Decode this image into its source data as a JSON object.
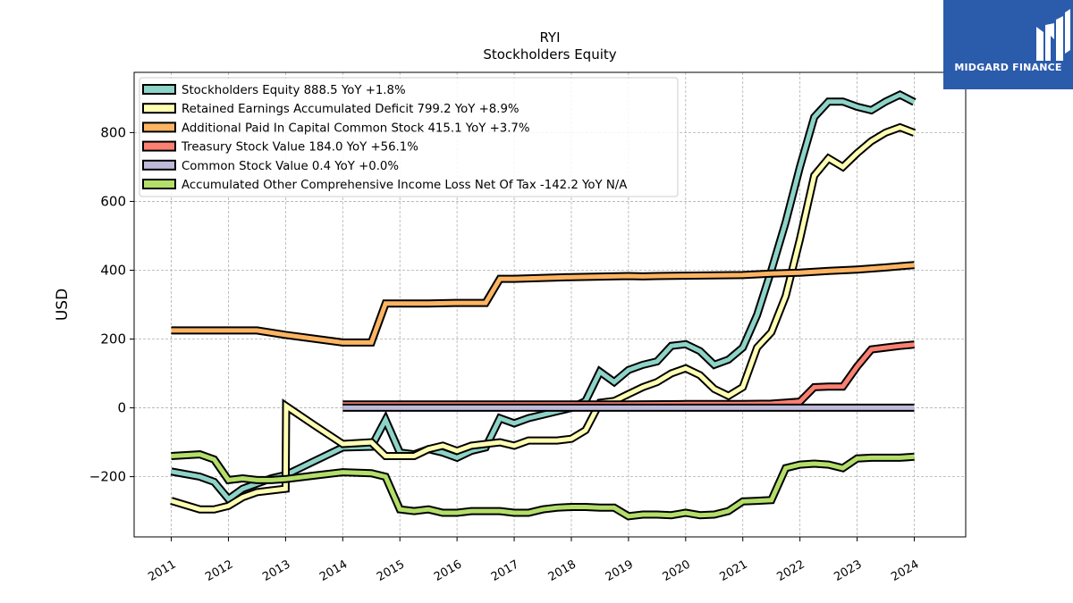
{
  "brand": {
    "name": "MIDGARD FINANCE",
    "bg": "#2b5bab"
  },
  "chart_data": {
    "type": "line",
    "title": "RYI",
    "subtitle": "Stockholders  Equity",
    "ylabel": "USD",
    "xlabel": "",
    "ylim": [
      -375,
      975
    ],
    "xlim": [
      2010.35,
      2024.9
    ],
    "yticks": [
      -200,
      0,
      200,
      400,
      600,
      800
    ],
    "ytick_labels": [
      "−200",
      "0",
      "200",
      "400",
      "600",
      "800"
    ],
    "xticks": [
      2011,
      2012,
      2013,
      2014,
      2015,
      2016,
      2017,
      2018,
      2019,
      2020,
      2021,
      2022,
      2023,
      2024
    ],
    "xtick_labels": [
      "2011",
      "2012",
      "2013",
      "2014",
      "2015",
      "2016",
      "2017",
      "2018",
      "2019",
      "2020",
      "2021",
      "2022",
      "2023",
      "2024"
    ],
    "grid": true,
    "legend_position": "top-left",
    "series": [
      {
        "name": "Stockholders Equity  888.5 YoY +1.8%",
        "color": "#8dd3c7",
        "points": [
          [
            2011.0,
            -185
          ],
          [
            2011.5,
            -200
          ],
          [
            2011.75,
            -215
          ],
          [
            2012.0,
            -265
          ],
          [
            2012.25,
            -235
          ],
          [
            2012.5,
            -220
          ],
          [
            2012.75,
            -205
          ],
          [
            2013.0,
            -195
          ],
          [
            2013.25,
            -175
          ],
          [
            2013.5,
            -155
          ],
          [
            2013.75,
            -135
          ],
          [
            2014.0,
            -115
          ],
          [
            2014.5,
            -113
          ],
          [
            2014.75,
            -35
          ],
          [
            2015.0,
            -130
          ],
          [
            2015.25,
            -135
          ],
          [
            2015.5,
            -120
          ],
          [
            2015.75,
            -130
          ],
          [
            2016.0,
            -145
          ],
          [
            2016.25,
            -125
          ],
          [
            2016.5,
            -115
          ],
          [
            2016.75,
            -30
          ],
          [
            2017.0,
            -45
          ],
          [
            2017.25,
            -30
          ],
          [
            2017.5,
            -20
          ],
          [
            2017.75,
            -10
          ],
          [
            2018.0,
            0
          ],
          [
            2018.25,
            20
          ],
          [
            2018.5,
            105
          ],
          [
            2018.75,
            75
          ],
          [
            2019.0,
            110
          ],
          [
            2019.25,
            125
          ],
          [
            2019.5,
            135
          ],
          [
            2019.75,
            180
          ],
          [
            2020.0,
            185
          ],
          [
            2020.25,
            165
          ],
          [
            2020.5,
            125
          ],
          [
            2020.75,
            140
          ],
          [
            2021.0,
            175
          ],
          [
            2021.25,
            270
          ],
          [
            2021.5,
            400
          ],
          [
            2021.75,
            540
          ],
          [
            2022.0,
            700
          ],
          [
            2022.25,
            845
          ],
          [
            2022.5,
            890
          ],
          [
            2022.75,
            890
          ],
          [
            2023.0,
            875
          ],
          [
            2023.25,
            865
          ],
          [
            2023.5,
            890
          ],
          [
            2023.75,
            910
          ],
          [
            2024.0,
            888.5
          ]
        ]
      },
      {
        "name": "Retained Earnings Accumulated Deficit  799.2 YoY +8.9%",
        "color": "#ffffb3",
        "points": [
          [
            2011.0,
            -270
          ],
          [
            2011.5,
            -295
          ],
          [
            2011.75,
            -295
          ],
          [
            2012.0,
            -285
          ],
          [
            2012.25,
            -260
          ],
          [
            2012.5,
            -245
          ],
          [
            2012.75,
            -240
          ],
          [
            2013.0,
            -235
          ],
          [
            2013.01,
            5
          ],
          [
            2013.5,
            -50
          ],
          [
            2014.0,
            -105
          ],
          [
            2014.5,
            -100
          ],
          [
            2014.75,
            -140
          ],
          [
            2015.0,
            -140
          ],
          [
            2015.25,
            -140
          ],
          [
            2015.5,
            -120
          ],
          [
            2015.75,
            -110
          ],
          [
            2016.0,
            -125
          ],
          [
            2016.25,
            -110
          ],
          [
            2016.5,
            -105
          ],
          [
            2016.75,
            -100
          ],
          [
            2017.0,
            -110
          ],
          [
            2017.25,
            -95
          ],
          [
            2017.5,
            -95
          ],
          [
            2017.75,
            -95
          ],
          [
            2018.0,
            -90
          ],
          [
            2018.25,
            -65
          ],
          [
            2018.5,
            15
          ],
          [
            2018.75,
            20
          ],
          [
            2019.0,
            40
          ],
          [
            2019.25,
            60
          ],
          [
            2019.5,
            75
          ],
          [
            2019.75,
            100
          ],
          [
            2020.0,
            115
          ],
          [
            2020.25,
            95
          ],
          [
            2020.5,
            55
          ],
          [
            2020.75,
            35
          ],
          [
            2021.0,
            60
          ],
          [
            2021.25,
            175
          ],
          [
            2021.5,
            220
          ],
          [
            2021.75,
            325
          ],
          [
            2022.0,
            490
          ],
          [
            2022.25,
            675
          ],
          [
            2022.5,
            725
          ],
          [
            2022.75,
            700
          ],
          [
            2023.0,
            740
          ],
          [
            2023.25,
            775
          ],
          [
            2023.5,
            800
          ],
          [
            2023.75,
            815
          ],
          [
            2024.0,
            799.2
          ]
        ]
      },
      {
        "name": "Additional Paid In Capital Common Stock  415.1 YoY +3.7%",
        "color": "#fdb462",
        "points": [
          [
            2011.0,
            225
          ],
          [
            2012.0,
            225
          ],
          [
            2012.5,
            225
          ],
          [
            2013.0,
            212
          ],
          [
            2014.0,
            190
          ],
          [
            2014.5,
            190
          ],
          [
            2014.75,
            303
          ],
          [
            2015.0,
            303
          ],
          [
            2015.5,
            303
          ],
          [
            2016.0,
            305
          ],
          [
            2016.5,
            305
          ],
          [
            2016.75,
            375
          ],
          [
            2017.0,
            375
          ],
          [
            2018.0,
            380
          ],
          [
            2019.0,
            383
          ],
          [
            2019.25,
            382
          ],
          [
            2019.5,
            383
          ],
          [
            2020.0,
            384
          ],
          [
            2021.0,
            386
          ],
          [
            2021.5,
            390
          ],
          [
            2022.0,
            393
          ],
          [
            2022.5,
            398
          ],
          [
            2023.0,
            402
          ],
          [
            2023.5,
            408
          ],
          [
            2024.0,
            415.1
          ]
        ]
      },
      {
        "name": "Treasury Stock Value  184.0 YoY +56.1%",
        "color": "#fb8072",
        "points": [
          [
            2014.0,
            10
          ],
          [
            2015.0,
            10
          ],
          [
            2016.0,
            10
          ],
          [
            2017.0,
            10
          ],
          [
            2018.0,
            10
          ],
          [
            2019.0,
            10
          ],
          [
            2020.0,
            11
          ],
          [
            2021.0,
            11
          ],
          [
            2021.5,
            12
          ],
          [
            2021.75,
            15
          ],
          [
            2022.0,
            18
          ],
          [
            2022.25,
            60
          ],
          [
            2022.5,
            62
          ],
          [
            2022.75,
            62
          ],
          [
            2023.0,
            120
          ],
          [
            2023.25,
            170
          ],
          [
            2023.5,
            175
          ],
          [
            2023.75,
            180
          ],
          [
            2024.0,
            184.0
          ]
        ]
      },
      {
        "name": "Common Stock Value  0.4 YoY +0.0%",
        "color": "#bebada",
        "points": [
          [
            2014.0,
            0.4
          ],
          [
            2015.0,
            0.4
          ],
          [
            2016.0,
            0.4
          ],
          [
            2017.0,
            0.4
          ],
          [
            2018.0,
            0.4
          ],
          [
            2019.0,
            0.4
          ],
          [
            2020.0,
            0.4
          ],
          [
            2021.0,
            0.4
          ],
          [
            2022.0,
            0.4
          ],
          [
            2023.0,
            0.4
          ],
          [
            2024.0,
            0.4
          ]
        ]
      },
      {
        "name": "Accumulated Other Comprehensive Income Loss Net Of Tax  -142.2 YoY N/A",
        "color": "#b3de69",
        "points": [
          [
            2011.0,
            -140
          ],
          [
            2011.5,
            -135
          ],
          [
            2011.75,
            -150
          ],
          [
            2012.0,
            -210
          ],
          [
            2012.25,
            -205
          ],
          [
            2012.5,
            -210
          ],
          [
            2012.75,
            -210
          ],
          [
            2013.0,
            -207
          ],
          [
            2013.5,
            -197
          ],
          [
            2014.0,
            -187
          ],
          [
            2014.5,
            -190
          ],
          [
            2014.75,
            -200
          ],
          [
            2015.0,
            -295
          ],
          [
            2015.25,
            -300
          ],
          [
            2015.5,
            -295
          ],
          [
            2015.75,
            -305
          ],
          [
            2016.0,
            -305
          ],
          [
            2016.25,
            -300
          ],
          [
            2016.5,
            -300
          ],
          [
            2016.75,
            -300
          ],
          [
            2017.0,
            -305
          ],
          [
            2017.25,
            -305
          ],
          [
            2017.5,
            -295
          ],
          [
            2017.75,
            -290
          ],
          [
            2018.0,
            -288
          ],
          [
            2018.25,
            -288
          ],
          [
            2018.5,
            -290
          ],
          [
            2018.75,
            -290
          ],
          [
            2019.0,
            -315
          ],
          [
            2019.25,
            -310
          ],
          [
            2019.5,
            -310
          ],
          [
            2019.75,
            -312
          ],
          [
            2020.0,
            -305
          ],
          [
            2020.25,
            -312
          ],
          [
            2020.5,
            -310
          ],
          [
            2020.75,
            -300
          ],
          [
            2021.0,
            -272
          ],
          [
            2021.25,
            -270
          ],
          [
            2021.5,
            -268
          ],
          [
            2021.75,
            -175
          ],
          [
            2022.0,
            -165
          ],
          [
            2022.25,
            -162
          ],
          [
            2022.5,
            -165
          ],
          [
            2022.75,
            -175
          ],
          [
            2023.0,
            -147
          ],
          [
            2023.25,
            -145
          ],
          [
            2023.5,
            -145
          ],
          [
            2023.75,
            -145
          ],
          [
            2024.0,
            -142.2
          ]
        ]
      }
    ]
  }
}
